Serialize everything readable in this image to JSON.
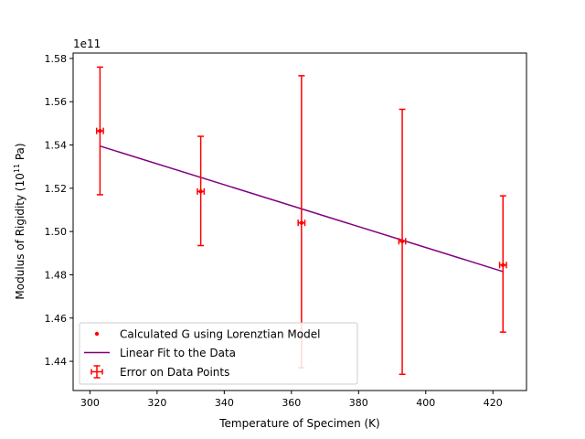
{
  "chart_data": {
    "type": "scatter",
    "xlabel": "Temperature of Specimen (K)",
    "ylabel_main": "Modulus of Rigidity (10",
    "ylabel_sup": "11",
    "ylabel_end": " Pa)",
    "offset_text": "1e11",
    "xlim": [
      295,
      430
    ],
    "ylim": [
      1.4265,
      1.5825
    ],
    "x_ticks": [
      300,
      320,
      340,
      360,
      380,
      400,
      420
    ],
    "y_ticks": [
      1.44,
      1.46,
      1.48,
      1.5,
      1.52,
      1.54,
      1.56,
      1.58
    ],
    "x_tick_labels": [
      "300",
      "320",
      "340",
      "360",
      "380",
      "400",
      "420"
    ],
    "y_tick_labels": [
      "1.44",
      "1.46",
      "1.48",
      "1.50",
      "1.52",
      "1.54",
      "1.56",
      "1.58"
    ],
    "points": [
      {
        "x": 303,
        "y": 1.5465,
        "y_low": 1.517,
        "y_high": 1.576,
        "x_err": 1
      },
      {
        "x": 333,
        "y": 1.5185,
        "y_low": 1.4935,
        "y_high": 1.544,
        "x_err": 1
      },
      {
        "x": 363,
        "y": 1.504,
        "y_low": 1.437,
        "y_high": 1.572,
        "x_err": 1
      },
      {
        "x": 393,
        "y": 1.4955,
        "y_low": 1.434,
        "y_high": 1.5565,
        "x_err": 1
      },
      {
        "x": 423,
        "y": 1.4845,
        "y_low": 1.4535,
        "y_high": 1.5165,
        "x_err": 1
      }
    ],
    "fit_line": {
      "x": [
        303,
        423
      ],
      "y": [
        1.5395,
        1.4815
      ]
    },
    "legend": {
      "placement": "lower-left",
      "entries": [
        "Calculated G using Lorenztian Model",
        "Linear Fit to the Data",
        "Error on Data Points"
      ]
    },
    "colors": {
      "points": "#ff0000",
      "fit": "#800080",
      "axes": "#000000"
    },
    "grid": false
  }
}
